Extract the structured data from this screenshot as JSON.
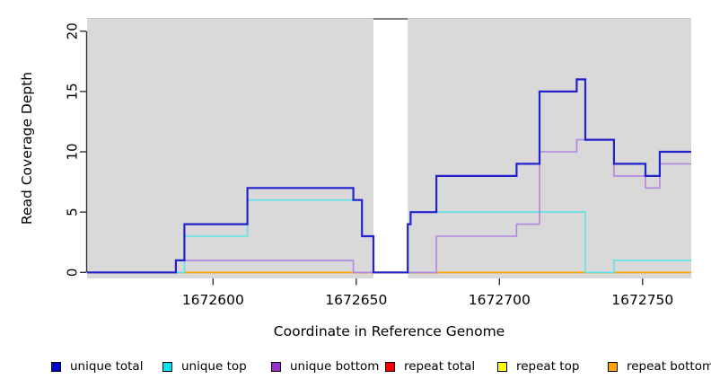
{
  "chart_data": {
    "type": "line",
    "subtype": "step-coverage",
    "xlabel": "Coordinate in Reference Genome",
    "ylabel": "Read Coverage Depth",
    "xlim": [
      1672556,
      1672767
    ],
    "ylim": [
      0,
      21
    ],
    "xticks": [
      1672600,
      1672650,
      1672700,
      1672750
    ],
    "yticks": [
      0,
      5,
      10,
      15,
      20
    ],
    "grid": false,
    "plot_bg_color": "#D9D9D9",
    "gap_region": {
      "start": 1672656,
      "end": 1672668,
      "fill": "#FFFFFF"
    },
    "legend_position": "bottom",
    "series": [
      {
        "name": "unique total",
        "color": "#2222CC",
        "legend_color": "#0000CD",
        "width": 2.2,
        "steps": [
          [
            1672556,
            0
          ],
          [
            1672587,
            1
          ],
          [
            1672590,
            4
          ],
          [
            1672612,
            7
          ],
          [
            1672649,
            6
          ],
          [
            1672652,
            3
          ],
          [
            1672656,
            0
          ],
          [
            1672668,
            4
          ],
          [
            1672669,
            5
          ],
          [
            1672678,
            8
          ],
          [
            1672706,
            9
          ],
          [
            1672714,
            15
          ],
          [
            1672727,
            16
          ],
          [
            1672730,
            11
          ],
          [
            1672740,
            9
          ],
          [
            1672751,
            8
          ],
          [
            1672756,
            10
          ],
          [
            1672767,
            10
          ]
        ]
      },
      {
        "name": "unique top",
        "color": "#5CE4E8",
        "legend_color": "#00E5EE",
        "width": 1.6,
        "steps": [
          [
            1672556,
            0
          ],
          [
            1672590,
            3
          ],
          [
            1672612,
            6
          ],
          [
            1672652,
            3
          ],
          [
            1672656,
            0
          ],
          [
            1672668,
            4
          ],
          [
            1672669,
            5
          ],
          [
            1672730,
            0
          ],
          [
            1672740,
            1
          ],
          [
            1672767,
            1
          ]
        ]
      },
      {
        "name": "unique bottom",
        "color": "#B185E0",
        "legend_color": "#9A30CD",
        "width": 1.6,
        "steps": [
          [
            1672556,
            0
          ],
          [
            1672587,
            1
          ],
          [
            1672649,
            0
          ],
          [
            1672678,
            3
          ],
          [
            1672706,
            4
          ],
          [
            1672714,
            10
          ],
          [
            1672727,
            11
          ],
          [
            1672740,
            8
          ],
          [
            1672751,
            7
          ],
          [
            1672756,
            9
          ],
          [
            1672767,
            9
          ]
        ]
      },
      {
        "name": "repeat total",
        "color": "#CC0000",
        "legend_color": "#FF0000",
        "width": 1.6,
        "steps": [
          [
            1672556,
            0
          ],
          [
            1672767,
            0
          ]
        ]
      },
      {
        "name": "repeat top",
        "color": "#FFFF00",
        "legend_color": "#FFFF00",
        "width": 1.6,
        "steps": [
          [
            1672556,
            0
          ],
          [
            1672767,
            0
          ]
        ]
      },
      {
        "name": "repeat bottom",
        "color": "#FFA500",
        "legend_color": "#FFA500",
        "width": 1.6,
        "steps": [
          [
            1672556,
            0
          ],
          [
            1672767,
            0
          ]
        ]
      }
    ]
  }
}
